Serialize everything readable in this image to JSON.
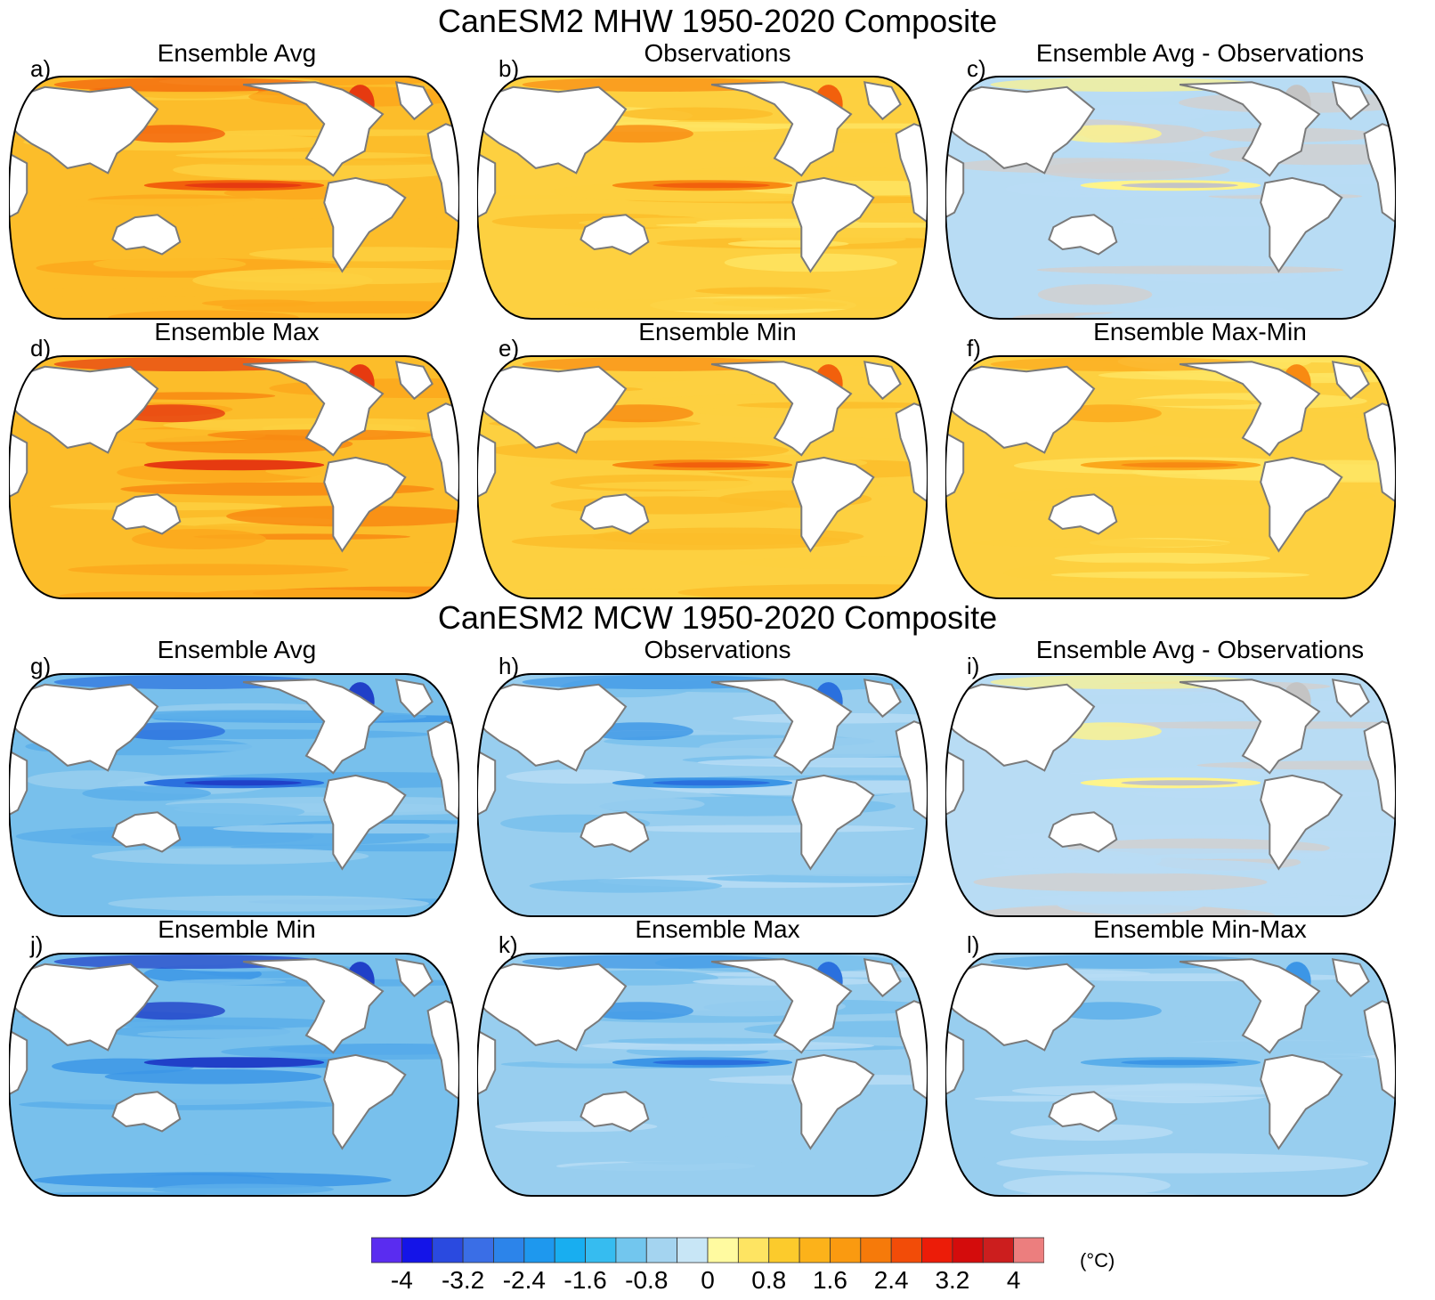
{
  "figure": {
    "mhw_title": "CanESM2 MHW 1950-2020 Composite",
    "mcw_title": "CanESM2 MCW 1950-2020 Composite"
  },
  "panels": [
    {
      "letter": "a)",
      "title": "Ensemble Avg",
      "scheme": "warm",
      "intensity": 1.0
    },
    {
      "letter": "b)",
      "title": "Observations",
      "scheme": "warm",
      "intensity": 0.95
    },
    {
      "letter": "c)",
      "title": "Ensemble Avg - Observations",
      "scheme": "diff",
      "intensity": 0.5
    },
    {
      "letter": "d)",
      "title": "Ensemble Max",
      "scheme": "warm",
      "intensity": 1.25
    },
    {
      "letter": "e)",
      "title": "Ensemble Min",
      "scheme": "warm",
      "intensity": 0.85
    },
    {
      "letter": "f)",
      "title": "Ensemble Max-Min",
      "scheme": "warm",
      "intensity": 0.45
    },
    {
      "letter": "g)",
      "title": "Ensemble Avg",
      "scheme": "cool",
      "intensity": 1.0
    },
    {
      "letter": "h)",
      "title": "Observations",
      "scheme": "cool",
      "intensity": 0.9
    },
    {
      "letter": "i)",
      "title": "Ensemble Avg - Observations",
      "scheme": "diff",
      "intensity": 0.5
    },
    {
      "letter": "j)",
      "title": "Ensemble Min",
      "scheme": "cool",
      "intensity": 1.25
    },
    {
      "letter": "k)",
      "title": "Ensemble Max",
      "scheme": "cool",
      "intensity": 0.85
    },
    {
      "letter": "l)",
      "title": "Ensemble Min-Max",
      "scheme": "cool",
      "intensity": 0.45
    }
  ],
  "colorbar": {
    "unit": "(°C)",
    "labels": [
      "-4",
      "-3.2",
      "-2.4",
      "-1.6",
      "-0.8",
      "0",
      "0.8",
      "1.6",
      "2.4",
      "3.2",
      "4"
    ],
    "colors": [
      "#5a2cf0",
      "#1414e8",
      "#2a4ae0",
      "#3a6ee6",
      "#2c84ea",
      "#1e98ee",
      "#18aef0",
      "#36bcf0",
      "#72c6ee",
      "#a4d4f0",
      "#c8e6f6",
      "#fffaa0",
      "#fee462",
      "#fccb2c",
      "#fcb21a",
      "#fa9a10",
      "#f67a0a",
      "#f24c08",
      "#ec1c08",
      "#d40c0c",
      "#cc1e1e",
      "#ec7e7e"
    ]
  }
}
